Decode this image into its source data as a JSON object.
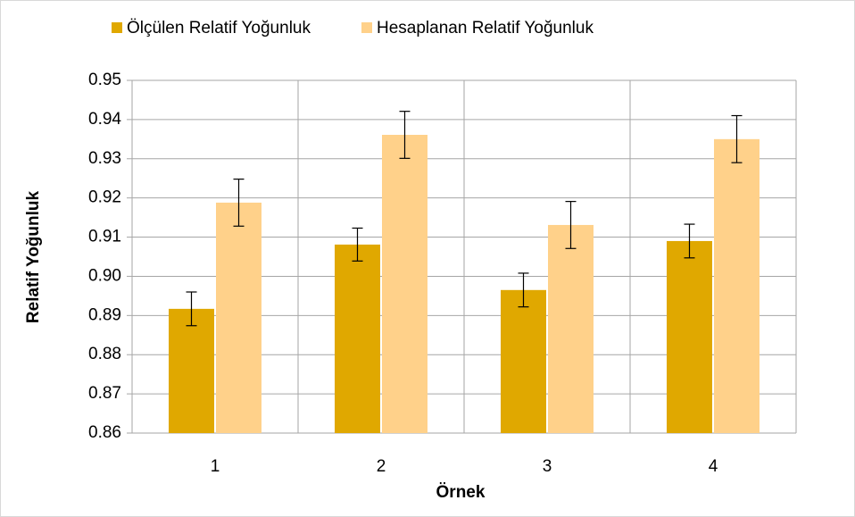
{
  "chart_data": {
    "type": "bar",
    "x_label": "Örnek",
    "y_label": "Relatif Yoğunluk",
    "categories": [
      "1",
      "2",
      "3",
      "4"
    ],
    "series": [
      {
        "name": "Ölçülen Relatif Yoğunluk",
        "color": "#E0A800",
        "values": [
          0.8917,
          0.9081,
          0.8965,
          0.909
        ],
        "errors": [
          0.0043,
          0.0042,
          0.0043,
          0.0043
        ]
      },
      {
        "name": "Hesaplanan Relatif Yoğunluk",
        "color": "#FFD18A",
        "values": [
          0.9188,
          0.9361,
          0.9131,
          0.935
        ],
        "errors": [
          0.006,
          0.006,
          0.006,
          0.006
        ]
      }
    ],
    "ylim": [
      0.86,
      0.95
    ],
    "yticks": [
      0.86,
      0.87,
      0.88,
      0.89,
      {
        "value": 0.9,
        "label": "0.90"
      },
      0.91,
      0.92,
      0.93,
      0.94,
      0.95
    ],
    "grid": true,
    "legend": "top"
  }
}
